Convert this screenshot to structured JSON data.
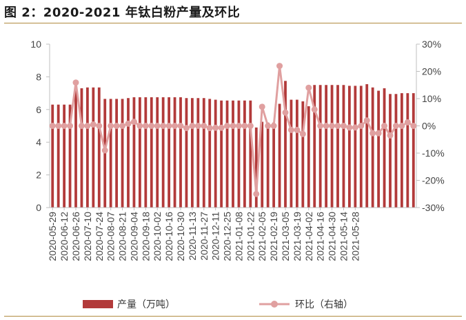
{
  "title": "图 2：2020-2021 年钛白粉产量及环比",
  "colors": {
    "bar": "#b23a3a",
    "line": "#e0a0a0",
    "rule": "#b08a3e",
    "axis": "#bfbfbf"
  },
  "chart_data": {
    "type": "bar",
    "x_tick_labels": [
      "2020-05-29",
      "2020-06-12",
      "2020-06-26",
      "2020-07-10",
      "2020-07-24",
      "2020-08-07",
      "2020-08-21",
      "2020-09-04",
      "2020-09-18",
      "2020-10-02",
      "2020-10-16",
      "2020-10-30",
      "2020-11-13",
      "2020-11-27",
      "2020-12-11",
      "2020-12-25",
      "2021-01-08",
      "2021-01-22",
      "2021-02-05",
      "2021-02-19",
      "2021-03-05",
      "2021-03-19",
      "2021-04-02",
      "2021-04-16",
      "2021-04-30",
      "2021-05-14",
      "2021-05-28"
    ],
    "series": [
      {
        "name": "产量（万吨）",
        "type": "bar",
        "axis": "left",
        "values": [
          6.3,
          6.3,
          6.3,
          6.3,
          7.3,
          7.3,
          7.35,
          7.35,
          7.35,
          6.65,
          6.65,
          6.65,
          6.65,
          6.7,
          6.75,
          6.75,
          6.75,
          6.75,
          6.75,
          6.75,
          6.75,
          6.75,
          6.75,
          6.7,
          6.7,
          6.7,
          6.7,
          6.65,
          6.6,
          6.55,
          6.55,
          6.55,
          6.55,
          6.55,
          6.55,
          4.9,
          5.25,
          5.2,
          5.2,
          6.35,
          7.75,
          6.6,
          6.6,
          6.5,
          6.2,
          7.5,
          7.5,
          7.5,
          7.5,
          7.5,
          7.5,
          7.45,
          7.45,
          7.45,
          7.55,
          7.35,
          7.15,
          7.3,
          6.95,
          6.95,
          7.0,
          7.0,
          7.0
        ]
      },
      {
        "name": "环比（右轴）",
        "type": "line",
        "axis": "right",
        "values": [
          0,
          0,
          0,
          0,
          15.9,
          0,
          0,
          0.5,
          0,
          -9,
          0,
          0,
          0,
          0.8,
          1.5,
          0,
          0,
          0,
          0,
          0,
          0,
          0,
          0,
          -0.8,
          0,
          0,
          0,
          -0.8,
          -0.7,
          -0.7,
          0,
          0,
          0,
          0,
          0,
          -25,
          7,
          0,
          0,
          22,
          4.9,
          -1.5,
          -1.5,
          -3,
          14,
          6,
          0,
          0,
          0,
          0,
          0,
          -0.6,
          -0.6,
          0,
          2,
          -2.7,
          -2.7,
          0,
          -3.5,
          0,
          0,
          1.3,
          0
        ]
      }
    ],
    "y_left": {
      "min": 0,
      "max": 10,
      "ticks": [
        "0",
        "2",
        "4",
        "6",
        "8",
        "10"
      ]
    },
    "y_right": {
      "min": -30,
      "max": 30,
      "ticks": [
        "-30%",
        "-20%",
        "-10%",
        "0%",
        "10%",
        "20%",
        "30%"
      ]
    },
    "legend_position": "bottom",
    "grid": false
  }
}
